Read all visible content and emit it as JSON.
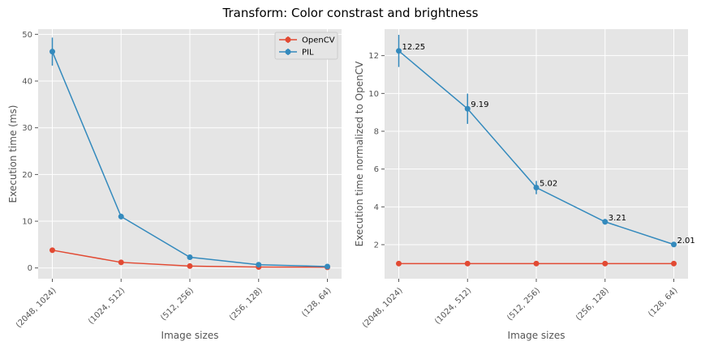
{
  "figure": {
    "title": "Transform: Color constrast and brightness"
  },
  "chart_data": [
    {
      "type": "line",
      "categories": [
        "(2048, 1024)",
        "(1024, 512)",
        "(512, 256)",
        "(256, 128)",
        "(128, 64)"
      ],
      "series": [
        {
          "name": "OpenCV",
          "color": "#E24A33",
          "values": [
            3.8,
            1.2,
            0.4,
            0.2,
            0.15
          ],
          "errors": [
            0.2,
            0.1,
            0.05,
            0.03,
            0.02
          ]
        },
        {
          "name": "PIL",
          "color": "#348ABD",
          "values": [
            46.3,
            11.0,
            2.3,
            0.7,
            0.3
          ],
          "errors": [
            3.0,
            0.6,
            0.1,
            0.05,
            0.02
          ]
        }
      ],
      "title": "",
      "xlabel": "Image sizes",
      "ylabel": "Execution time (ms)",
      "ylim": [
        -2.3,
        51.1
      ],
      "yticks": [
        0,
        10,
        20,
        30,
        40,
        50
      ],
      "grid": true,
      "legend": "top-right",
      "annotations": []
    },
    {
      "type": "line",
      "categories": [
        "(2048, 1024)",
        "(1024, 512)",
        "(512, 256)",
        "(256, 128)",
        "(128, 64)"
      ],
      "series": [
        {
          "name": "OpenCV",
          "color": "#E24A33",
          "values": [
            1,
            1,
            1,
            1,
            1
          ],
          "errors": [
            0,
            0,
            0,
            0.1,
            0
          ]
        },
        {
          "name": "PIL",
          "color": "#348ABD",
          "values": [
            12.25,
            9.19,
            5.02,
            3.21,
            2.01
          ],
          "errors": [
            0.85,
            0.8,
            0.35,
            0.15,
            0.05
          ]
        }
      ],
      "title": "",
      "xlabel": "Image sizes",
      "ylabel": "Execution time normalized to OpenCV",
      "ylim": [
        0.2,
        13.4
      ],
      "yticks": [
        2,
        4,
        6,
        8,
        10,
        12
      ],
      "grid": true,
      "legend": "none",
      "annotations": [
        "12.25",
        "9.19",
        "5.02",
        "3.21",
        "2.01"
      ]
    }
  ]
}
